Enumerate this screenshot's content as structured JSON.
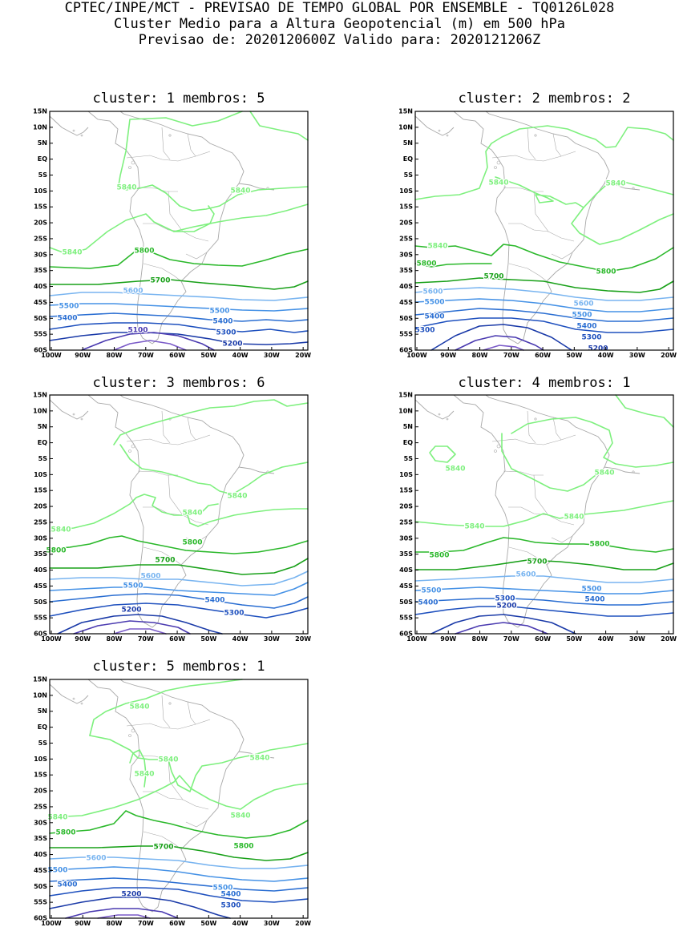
{
  "header": {
    "line1": "CPTEC/INPE/MCT - PREVISAO DE TEMPO GLOBAL POR ENSEMBLE - TQ0126L028",
    "line2": "Cluster Medio para a Altura Geopotencial (m) em 500 hPa",
    "line3": "Previsao de: 2020120600Z    Valido para: 2020121206Z"
  },
  "axes": {
    "lat_ticks": [
      "15N",
      "10N",
      "5N",
      "EQ",
      "5S",
      "10S",
      "15S",
      "20S",
      "25S",
      "30S",
      "35S",
      "40S",
      "45S",
      "50S",
      "55S",
      "60S"
    ],
    "lon_ticks": [
      "100W",
      "90W",
      "80W",
      "70W",
      "60W",
      "50W",
      "40W",
      "30W",
      "20W"
    ]
  },
  "colors": {
    "c5840": "#7ef07e",
    "c5800": "#2ab82a",
    "c5700": "#18a018",
    "c5600": "#78b4f0",
    "c5500": "#4692e6",
    "c5400": "#2a6ed2",
    "c5300": "#1e50be",
    "c5200": "#1a3aa8",
    "c5100": "#4a3ab0",
    "c5000": "#7a5ac8",
    "coast": "#a8a8a8"
  },
  "panels": [
    {
      "title": "cluster: 1   membros: 5",
      "labels": [
        "5840",
        "5840",
        "5840",
        "5800",
        "5700",
        "5600",
        "5500",
        "5500",
        "5400",
        "5400",
        "5300",
        "5200",
        "5100"
      ]
    },
    {
      "title": "cluster: 2   membros: 2",
      "labels": [
        "5840",
        "5840",
        "5840",
        "5800",
        "5800",
        "5700",
        "5600",
        "5600",
        "5500",
        "5500",
        "5400",
        "5400",
        "5300",
        "5300",
        "5200"
      ]
    },
    {
      "title": "cluster: 3   membros: 6",
      "labels": [
        "5840",
        "5840",
        "5840",
        "5800",
        "5800",
        "5700",
        "5600",
        "5500",
        "5400",
        "5300",
        "5200"
      ]
    },
    {
      "title": "cluster: 4   membros: 1",
      "labels": [
        "5840",
        "5840",
        "5840",
        "5840",
        "5800",
        "5800",
        "5700",
        "5600",
        "5500",
        "5500",
        "5400",
        "5400",
        "5300",
        "5200"
      ]
    },
    {
      "title": "cluster: 5   membros: 1",
      "labels": [
        "5840",
        "5840",
        "5840",
        "5840",
        "5840",
        "5840",
        "5800",
        "5800",
        "5700",
        "5600",
        "5500",
        "5500",
        "5400",
        "5400",
        "5300",
        "5200"
      ]
    }
  ]
}
